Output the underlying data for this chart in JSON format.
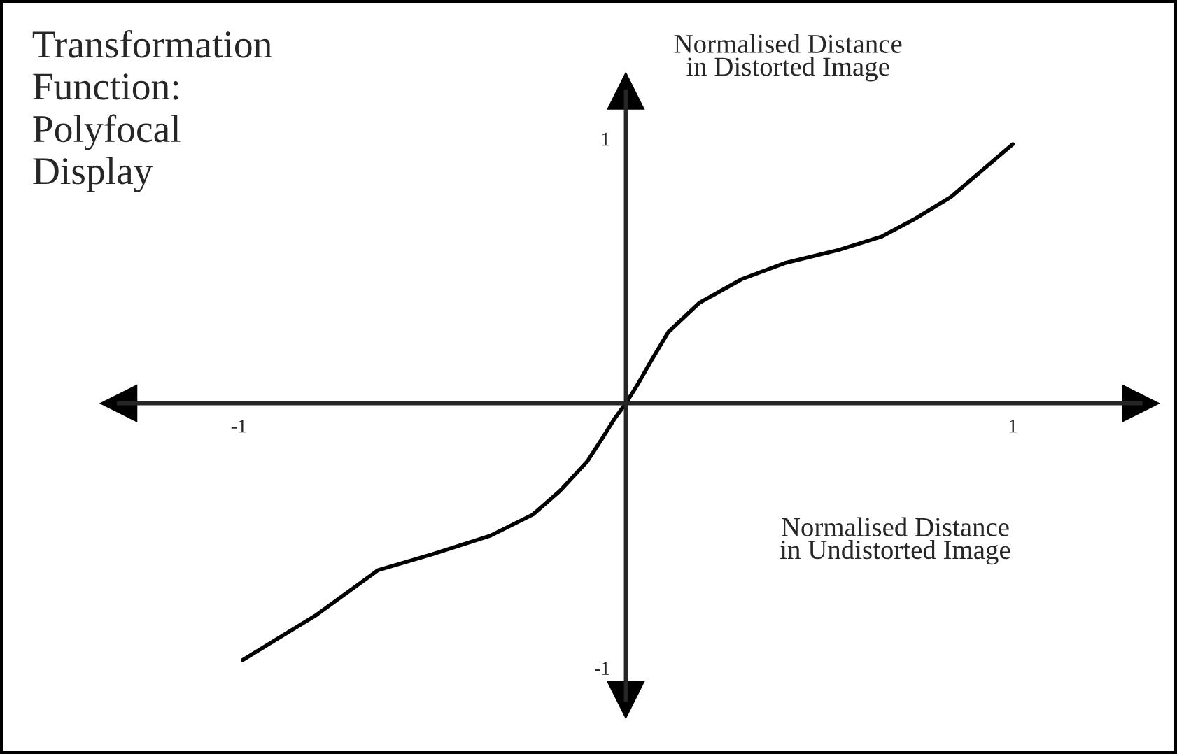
{
  "chart_data": {
    "type": "line",
    "title": "Transformation\nFunction:\nPolyfocal\nDisplay",
    "xlabel": "Normalised Distance\nin Undistorted Image",
    "ylabel": "Normalised Distance\nin Distorted Image",
    "x": [
      -0.99,
      -0.8,
      -0.64,
      -0.5,
      -0.35,
      -0.24,
      -0.17,
      -0.1,
      -0.06,
      -0.03,
      0,
      0.03,
      0.065,
      0.11,
      0.19,
      0.3,
      0.41,
      0.55,
      0.66,
      0.75,
      0.84,
      0.92,
      1.0
    ],
    "series": [
      {
        "color": "#000000",
        "values": [
          -0.97,
          -0.8,
          -0.63,
          -0.57,
          -0.5,
          -0.42,
          -0.33,
          -0.22,
          -0.13,
          -0.06,
          0,
          0.07,
          0.16,
          0.27,
          0.38,
          0.47,
          0.53,
          0.58,
          0.63,
          0.7,
          0.78,
          0.88,
          0.98
        ]
      }
    ],
    "xlim": [
      -1.31,
      1.33
    ],
    "ylim": [
      -1.12,
      1.18
    ],
    "xticks": [
      -1,
      1
    ],
    "yticks": [
      -1,
      1
    ],
    "grid": false,
    "legend": false,
    "marker": "none",
    "line_style": "solid"
  }
}
